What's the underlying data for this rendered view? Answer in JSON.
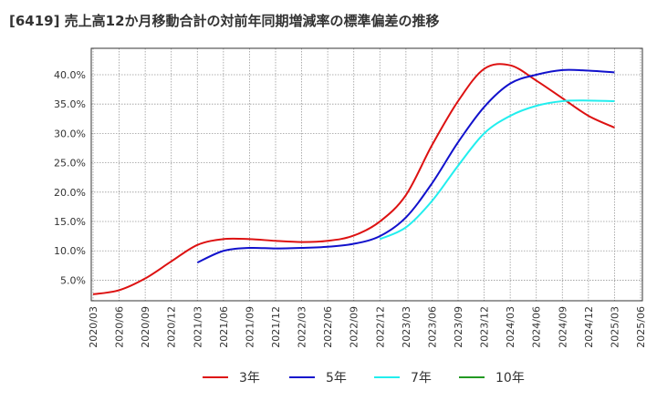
{
  "title": "[6419]  売上高12か月移動合計の対前年同期増減率の標準偏差の推移",
  "chart_data": {
    "type": "line",
    "title": "[6419]  売上高12か月移動合計の対前年同期増減率の標準偏差の推移",
    "xlabel": "",
    "ylabel": "",
    "ylim": [
      0.015,
      0.445
    ],
    "yticks": [
      0.05,
      0.1,
      0.15,
      0.2,
      0.25,
      0.3,
      0.35,
      0.4
    ],
    "ytick_labels": [
      "5.0%",
      "10.0%",
      "15.0%",
      "20.0%",
      "25.0%",
      "30.0%",
      "35.0%",
      "40.0%"
    ],
    "xticks": [
      "2020/03",
      "2020/06",
      "2020/09",
      "2020/12",
      "2021/03",
      "2021/06",
      "2021/09",
      "2021/12",
      "2022/03",
      "2022/06",
      "2022/09",
      "2022/12",
      "2023/03",
      "2023/06",
      "2023/09",
      "2023/12",
      "2024/03",
      "2024/06",
      "2024/09",
      "2024/12",
      "2025/03",
      "2025/06"
    ],
    "grid": true,
    "legend_position": "bottom",
    "series": [
      {
        "name": "3年",
        "color": "#dd1111",
        "x": [
          "2020/03",
          "2020/06",
          "2020/09",
          "2020/12",
          "2021/03",
          "2021/06",
          "2021/09",
          "2021/12",
          "2022/03",
          "2022/06",
          "2022/09",
          "2022/12",
          "2023/03",
          "2023/06",
          "2023/09",
          "2023/12",
          "2024/03",
          "2024/06",
          "2024/09",
          "2024/12",
          "2025/03"
        ],
        "values": [
          0.026,
          0.033,
          0.053,
          0.082,
          0.11,
          0.12,
          0.12,
          0.117,
          0.115,
          0.117,
          0.126,
          0.15,
          0.195,
          0.28,
          0.355,
          0.41,
          0.416,
          0.39,
          0.36,
          0.33,
          0.31
        ]
      },
      {
        "name": "5年",
        "color": "#1111cc",
        "x": [
          "2021/03",
          "2021/06",
          "2021/09",
          "2021/12",
          "2022/03",
          "2022/06",
          "2022/09",
          "2022/12",
          "2023/03",
          "2023/06",
          "2023/09",
          "2023/12",
          "2024/03",
          "2024/06",
          "2024/09",
          "2024/12",
          "2025/03"
        ],
        "values": [
          0.08,
          0.1,
          0.105,
          0.104,
          0.105,
          0.107,
          0.112,
          0.125,
          0.157,
          0.215,
          0.285,
          0.345,
          0.385,
          0.4,
          0.408,
          0.407,
          0.404
        ]
      },
      {
        "name": "7年",
        "color": "#22eeee",
        "x": [
          "2022/12",
          "2023/03",
          "2023/06",
          "2023/09",
          "2023/12",
          "2024/03",
          "2024/06",
          "2024/09",
          "2024/12",
          "2025/03"
        ],
        "values": [
          0.12,
          0.14,
          0.185,
          0.245,
          0.3,
          0.33,
          0.347,
          0.355,
          0.356,
          0.355
        ]
      },
      {
        "name": "10年",
        "color": "#229922",
        "x": [],
        "values": []
      }
    ]
  }
}
